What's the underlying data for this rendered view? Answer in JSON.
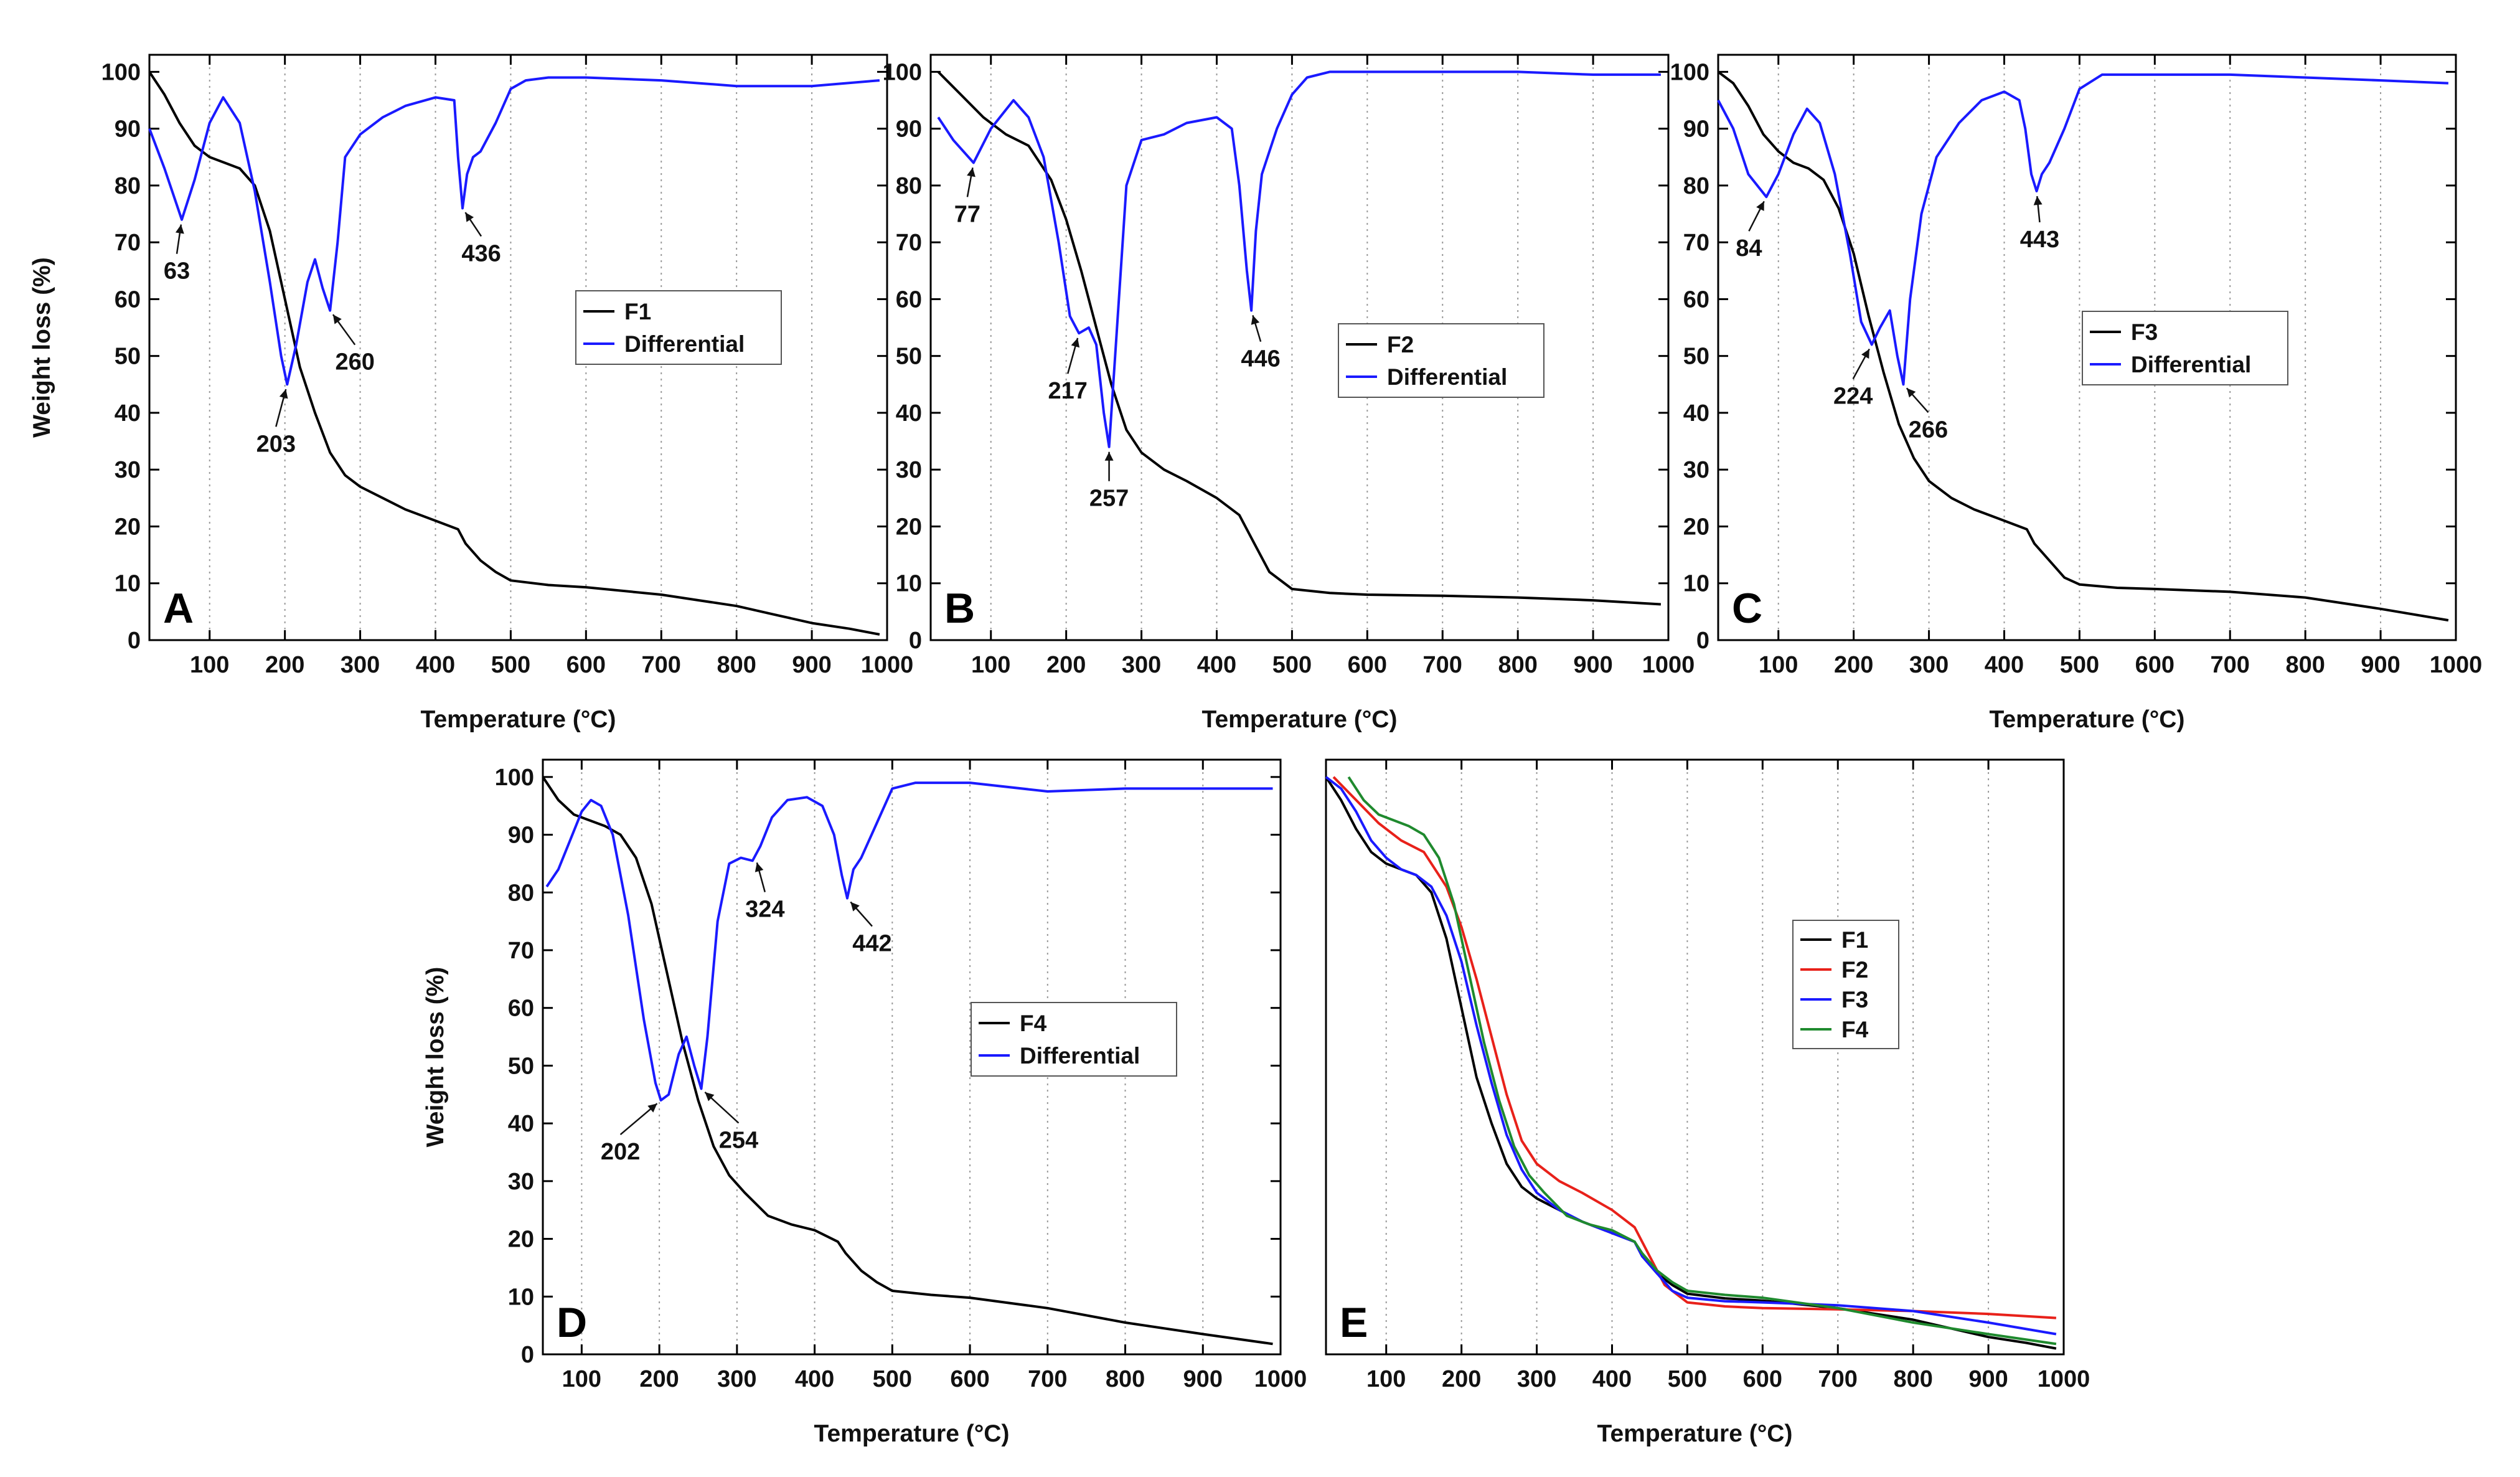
{
  "chart_data": [
    {
      "panel": "A",
      "type": "line",
      "xlabel": "Temperature (°C)",
      "ylabel": "Weight loss (%)",
      "xlim": [
        20,
        1000
      ],
      "ylim": [
        0,
        103
      ],
      "xticks": [
        100,
        200,
        300,
        400,
        500,
        600,
        700,
        800,
        900,
        1000
      ],
      "yticks": [
        0,
        10,
        20,
        30,
        40,
        50,
        60,
        70,
        80,
        90,
        100
      ],
      "legend_position": "center",
      "series": [
        {
          "name": "F1",
          "color": "#000000",
          "x": [
            20,
            40,
            60,
            80,
            100,
            120,
            140,
            160,
            180,
            200,
            220,
            240,
            260,
            280,
            300,
            330,
            360,
            400,
            430,
            440,
            460,
            480,
            500,
            550,
            600,
            700,
            750,
            800,
            850,
            900,
            950,
            990
          ],
          "y": [
            100,
            96,
            91,
            87,
            85,
            84,
            83,
            80,
            72,
            60,
            48,
            40,
            33,
            29,
            27,
            25,
            23,
            21,
            19.5,
            17,
            14,
            12,
            10.5,
            9.7,
            9.3,
            8,
            7,
            6,
            4.5,
            3,
            2,
            1
          ]
        },
        {
          "name": "Differential",
          "color": "#1a1aff",
          "x": [
            20,
            40,
            63,
            80,
            100,
            118,
            140,
            160,
            180,
            195,
            203,
            215,
            230,
            240,
            250,
            260,
            270,
            280,
            300,
            330,
            360,
            400,
            425,
            430,
            436,
            442,
            450,
            460,
            480,
            500,
            520,
            550,
            600,
            700,
            800,
            900,
            990
          ],
          "y": [
            90,
            83,
            74,
            81,
            91,
            95.5,
            91,
            79,
            63,
            50,
            45,
            52,
            63,
            67,
            62,
            58,
            70,
            85,
            89,
            92,
            94,
            95.5,
            95,
            85,
            76,
            82,
            85,
            86,
            91,
            97,
            98.5,
            99,
            99,
            98.5,
            97.5,
            97.5,
            98.5
          ]
        }
      ],
      "annotations": [
        {
          "text": "63",
          "x": 63,
          "y": 74
        },
        {
          "text": "203",
          "x": 203,
          "y": 45
        },
        {
          "text": "260",
          "x": 260,
          "y": 58
        },
        {
          "text": "436",
          "x": 436,
          "y": 76
        }
      ]
    },
    {
      "panel": "B",
      "type": "line",
      "xlabel": "Temperature (°C)",
      "ylabel": "",
      "xlim": [
        20,
        1000
      ],
      "ylim": [
        0,
        103
      ],
      "xticks": [
        100,
        200,
        300,
        400,
        500,
        600,
        700,
        800,
        900,
        1000
      ],
      "yticks": [
        0,
        10,
        20,
        30,
        40,
        50,
        60,
        70,
        80,
        90,
        100
      ],
      "legend_position": "center",
      "series": [
        {
          "name": "F2",
          "color": "#000000",
          "x": [
            30,
            60,
            90,
            120,
            150,
            180,
            200,
            220,
            240,
            260,
            280,
            300,
            330,
            360,
            400,
            430,
            450,
            470,
            500,
            550,
            600,
            700,
            800,
            900,
            990
          ],
          "y": [
            100,
            96,
            92,
            89,
            87,
            81,
            74,
            65,
            55,
            45,
            37,
            33,
            30,
            28,
            25,
            22,
            17,
            12,
            9,
            8.3,
            8,
            7.8,
            7.5,
            7,
            6.3
          ]
        },
        {
          "name": "Differential",
          "color": "#1a1aff",
          "x": [
            30,
            50,
            77,
            100,
            130,
            150,
            170,
            190,
            205,
            217,
            230,
            240,
            250,
            257,
            265,
            280,
            300,
            330,
            360,
            400,
            420,
            430,
            440,
            446,
            452,
            460,
            480,
            500,
            520,
            550,
            600,
            700,
            800,
            900,
            990
          ],
          "y": [
            92,
            88,
            84,
            90,
            95,
            92,
            85,
            70,
            57,
            54,
            55,
            52,
            40,
            34,
            50,
            80,
            88,
            89,
            91,
            92,
            90,
            80,
            65,
            58,
            72,
            82,
            90,
            96,
            99,
            100,
            100,
            100,
            100,
            99.5,
            99.5
          ]
        }
      ],
      "annotations": [
        {
          "text": "77",
          "x": 77,
          "y": 84
        },
        {
          "text": "217",
          "x": 217,
          "y": 54
        },
        {
          "text": "257",
          "x": 257,
          "y": 34
        },
        {
          "text": "446",
          "x": 446,
          "y": 58
        }
      ]
    },
    {
      "panel": "C",
      "type": "line",
      "xlabel": "Temperature (°C)",
      "ylabel": "",
      "xlim": [
        20,
        1000
      ],
      "ylim": [
        0,
        103
      ],
      "xticks": [
        100,
        200,
        300,
        400,
        500,
        600,
        700,
        800,
        900,
        1000
      ],
      "yticks": [
        0,
        10,
        20,
        30,
        40,
        50,
        60,
        70,
        80,
        90,
        100
      ],
      "legend_position": "center-right",
      "series": [
        {
          "name": "F3",
          "color": "#000000",
          "x": [
            20,
            40,
            60,
            80,
            100,
            120,
            140,
            160,
            180,
            200,
            220,
            240,
            260,
            280,
            300,
            330,
            360,
            400,
            430,
            440,
            460,
            480,
            500,
            550,
            600,
            700,
            800,
            900,
            990
          ],
          "y": [
            100,
            98,
            94,
            89,
            86,
            84,
            83,
            81,
            76,
            68,
            57,
            47,
            38,
            32,
            28,
            25,
            23,
            21,
            19.5,
            17,
            14,
            11,
            9.8,
            9.2,
            9,
            8.5,
            7.5,
            5.5,
            3.5
          ]
        },
        {
          "name": "Differential",
          "color": "#1a1aff",
          "x": [
            20,
            40,
            60,
            84,
            100,
            120,
            138,
            155,
            175,
            195,
            210,
            224,
            235,
            248,
            258,
            266,
            275,
            290,
            310,
            340,
            370,
            400,
            420,
            428,
            436,
            443,
            450,
            460,
            480,
            500,
            530,
            600,
            700,
            800,
            900,
            990
          ],
          "y": [
            95,
            90,
            82,
            78,
            82,
            89,
            93.5,
            91,
            82,
            68,
            56,
            52,
            55,
            58,
            50,
            45,
            60,
            75,
            85,
            91,
            95,
            96.5,
            95,
            90,
            82,
            79,
            82,
            84,
            90,
            97,
            99.5,
            99.5,
            99.5,
            99,
            98.5,
            98
          ]
        }
      ],
      "annotations": [
        {
          "text": "84",
          "x": 84,
          "y": 78
        },
        {
          "text": "224",
          "x": 224,
          "y": 52
        },
        {
          "text": "266",
          "x": 266,
          "y": 45
        },
        {
          "text": "443",
          "x": 443,
          "y": 79
        }
      ]
    },
    {
      "panel": "D",
      "type": "line",
      "xlabel": "Temperature (°C)",
      "ylabel": "Weight loss (%)",
      "xlim": [
        50,
        1000
      ],
      "ylim": [
        0,
        103
      ],
      "xticks": [
        100,
        200,
        300,
        400,
        500,
        600,
        700,
        800,
        900,
        1000
      ],
      "yticks": [
        0,
        10,
        20,
        30,
        40,
        50,
        60,
        70,
        80,
        90,
        100
      ],
      "legend_position": "center-right",
      "series": [
        {
          "name": "F4",
          "color": "#000000",
          "x": [
            50,
            70,
            90,
            110,
            130,
            150,
            170,
            190,
            210,
            230,
            250,
            270,
            290,
            310,
            340,
            370,
            400,
            430,
            440,
            460,
            480,
            500,
            550,
            600,
            700,
            800,
            900,
            990
          ],
          "y": [
            100,
            96,
            93.5,
            92.5,
            91.5,
            90,
            86,
            78,
            66,
            54,
            44,
            36,
            31,
            28,
            24,
            22.5,
            21.5,
            19.5,
            17.5,
            14.5,
            12.5,
            11,
            10.3,
            9.8,
            8,
            5.5,
            3.5,
            1.8
          ]
        },
        {
          "name": "Differential",
          "color": "#1a1aff",
          "x": [
            55,
            70,
            85,
            100,
            112,
            125,
            140,
            160,
            180,
            195,
            202,
            212,
            225,
            235,
            245,
            254,
            262,
            275,
            290,
            305,
            320,
            330,
            345,
            365,
            390,
            410,
            425,
            435,
            442,
            450,
            460,
            480,
            500,
            530,
            600,
            700,
            800,
            900,
            990
          ],
          "y": [
            81,
            84,
            89,
            94,
            96,
            95,
            90,
            76,
            58,
            47,
            44,
            45,
            52,
            55,
            50,
            46,
            55,
            75,
            85,
            86,
            85.5,
            88,
            93,
            96,
            96.5,
            95,
            90,
            83,
            79,
            84,
            86,
            92,
            98,
            99,
            99,
            97.5,
            98,
            98,
            98
          ]
        }
      ],
      "annotations": [
        {
          "text": "202",
          "x": 202,
          "y": 44
        },
        {
          "text": "254",
          "x": 254,
          "y": 46
        },
        {
          "text": "324",
          "x": 324,
          "y": 86
        },
        {
          "text": "442",
          "x": 442,
          "y": 79
        }
      ]
    },
    {
      "panel": "E",
      "type": "line",
      "xlabel": "Temperature (°C)",
      "ylabel": "",
      "xlim": [
        20,
        1000
      ],
      "ylim": [
        0,
        103
      ],
      "xticks": [
        100,
        200,
        300,
        400,
        500,
        600,
        700,
        800,
        900,
        1000
      ],
      "yticks": [],
      "legend_position": "center-right",
      "series": [
        {
          "name": "F1",
          "color": "#000000",
          "x": [
            20,
            40,
            60,
            80,
            100,
            120,
            140,
            160,
            180,
            200,
            220,
            240,
            260,
            280,
            300,
            330,
            360,
            400,
            430,
            440,
            460,
            480,
            500,
            550,
            600,
            700,
            750,
            800,
            850,
            900,
            950,
            990
          ],
          "y": [
            100,
            96,
            91,
            87,
            85,
            84,
            83,
            80,
            72,
            60,
            48,
            40,
            33,
            29,
            27,
            25,
            23,
            21,
            19.5,
            17,
            14,
            12,
            10.5,
            9.7,
            9.3,
            8,
            7,
            6,
            4.5,
            3,
            2,
            1
          ]
        },
        {
          "name": "F2",
          "color": "#e8211a",
          "x": [
            30,
            60,
            90,
            120,
            150,
            180,
            200,
            220,
            240,
            260,
            280,
            300,
            330,
            360,
            400,
            430,
            450,
            470,
            500,
            550,
            600,
            700,
            800,
            900,
            990
          ],
          "y": [
            100,
            96,
            92,
            89,
            87,
            81,
            74,
            65,
            55,
            45,
            37,
            33,
            30,
            28,
            25,
            22,
            17,
            12,
            9,
            8.3,
            8,
            7.8,
            7.5,
            7,
            6.3
          ]
        },
        {
          "name": "F3",
          "color": "#1a1aff",
          "x": [
            20,
            40,
            60,
            80,
            100,
            120,
            140,
            160,
            180,
            200,
            220,
            240,
            260,
            280,
            300,
            330,
            360,
            400,
            430,
            440,
            460,
            480,
            500,
            550,
            600,
            700,
            800,
            900,
            990
          ],
          "y": [
            100,
            98,
            94,
            89,
            86,
            84,
            83,
            81,
            76,
            68,
            57,
            47,
            38,
            32,
            28,
            25,
            23,
            21,
            19.5,
            17,
            14,
            11,
            9.8,
            9.2,
            9,
            8.5,
            7.5,
            5.5,
            3.5
          ]
        },
        {
          "name": "F4",
          "color": "#1f8a2e",
          "x": [
            50,
            70,
            90,
            110,
            130,
            150,
            170,
            190,
            210,
            230,
            250,
            270,
            290,
            310,
            340,
            370,
            400,
            430,
            440,
            460,
            480,
            500,
            550,
            600,
            700,
            800,
            900,
            990
          ],
          "y": [
            100,
            96,
            93.5,
            92.5,
            91.5,
            90,
            86,
            78,
            66,
            54,
            44,
            36,
            31,
            28,
            24,
            22.5,
            21.5,
            19.5,
            17.5,
            14.5,
            12.5,
            11,
            10.3,
            9.8,
            8,
            5.5,
            3.5,
            1.8
          ]
        }
      ],
      "annotations": []
    }
  ]
}
